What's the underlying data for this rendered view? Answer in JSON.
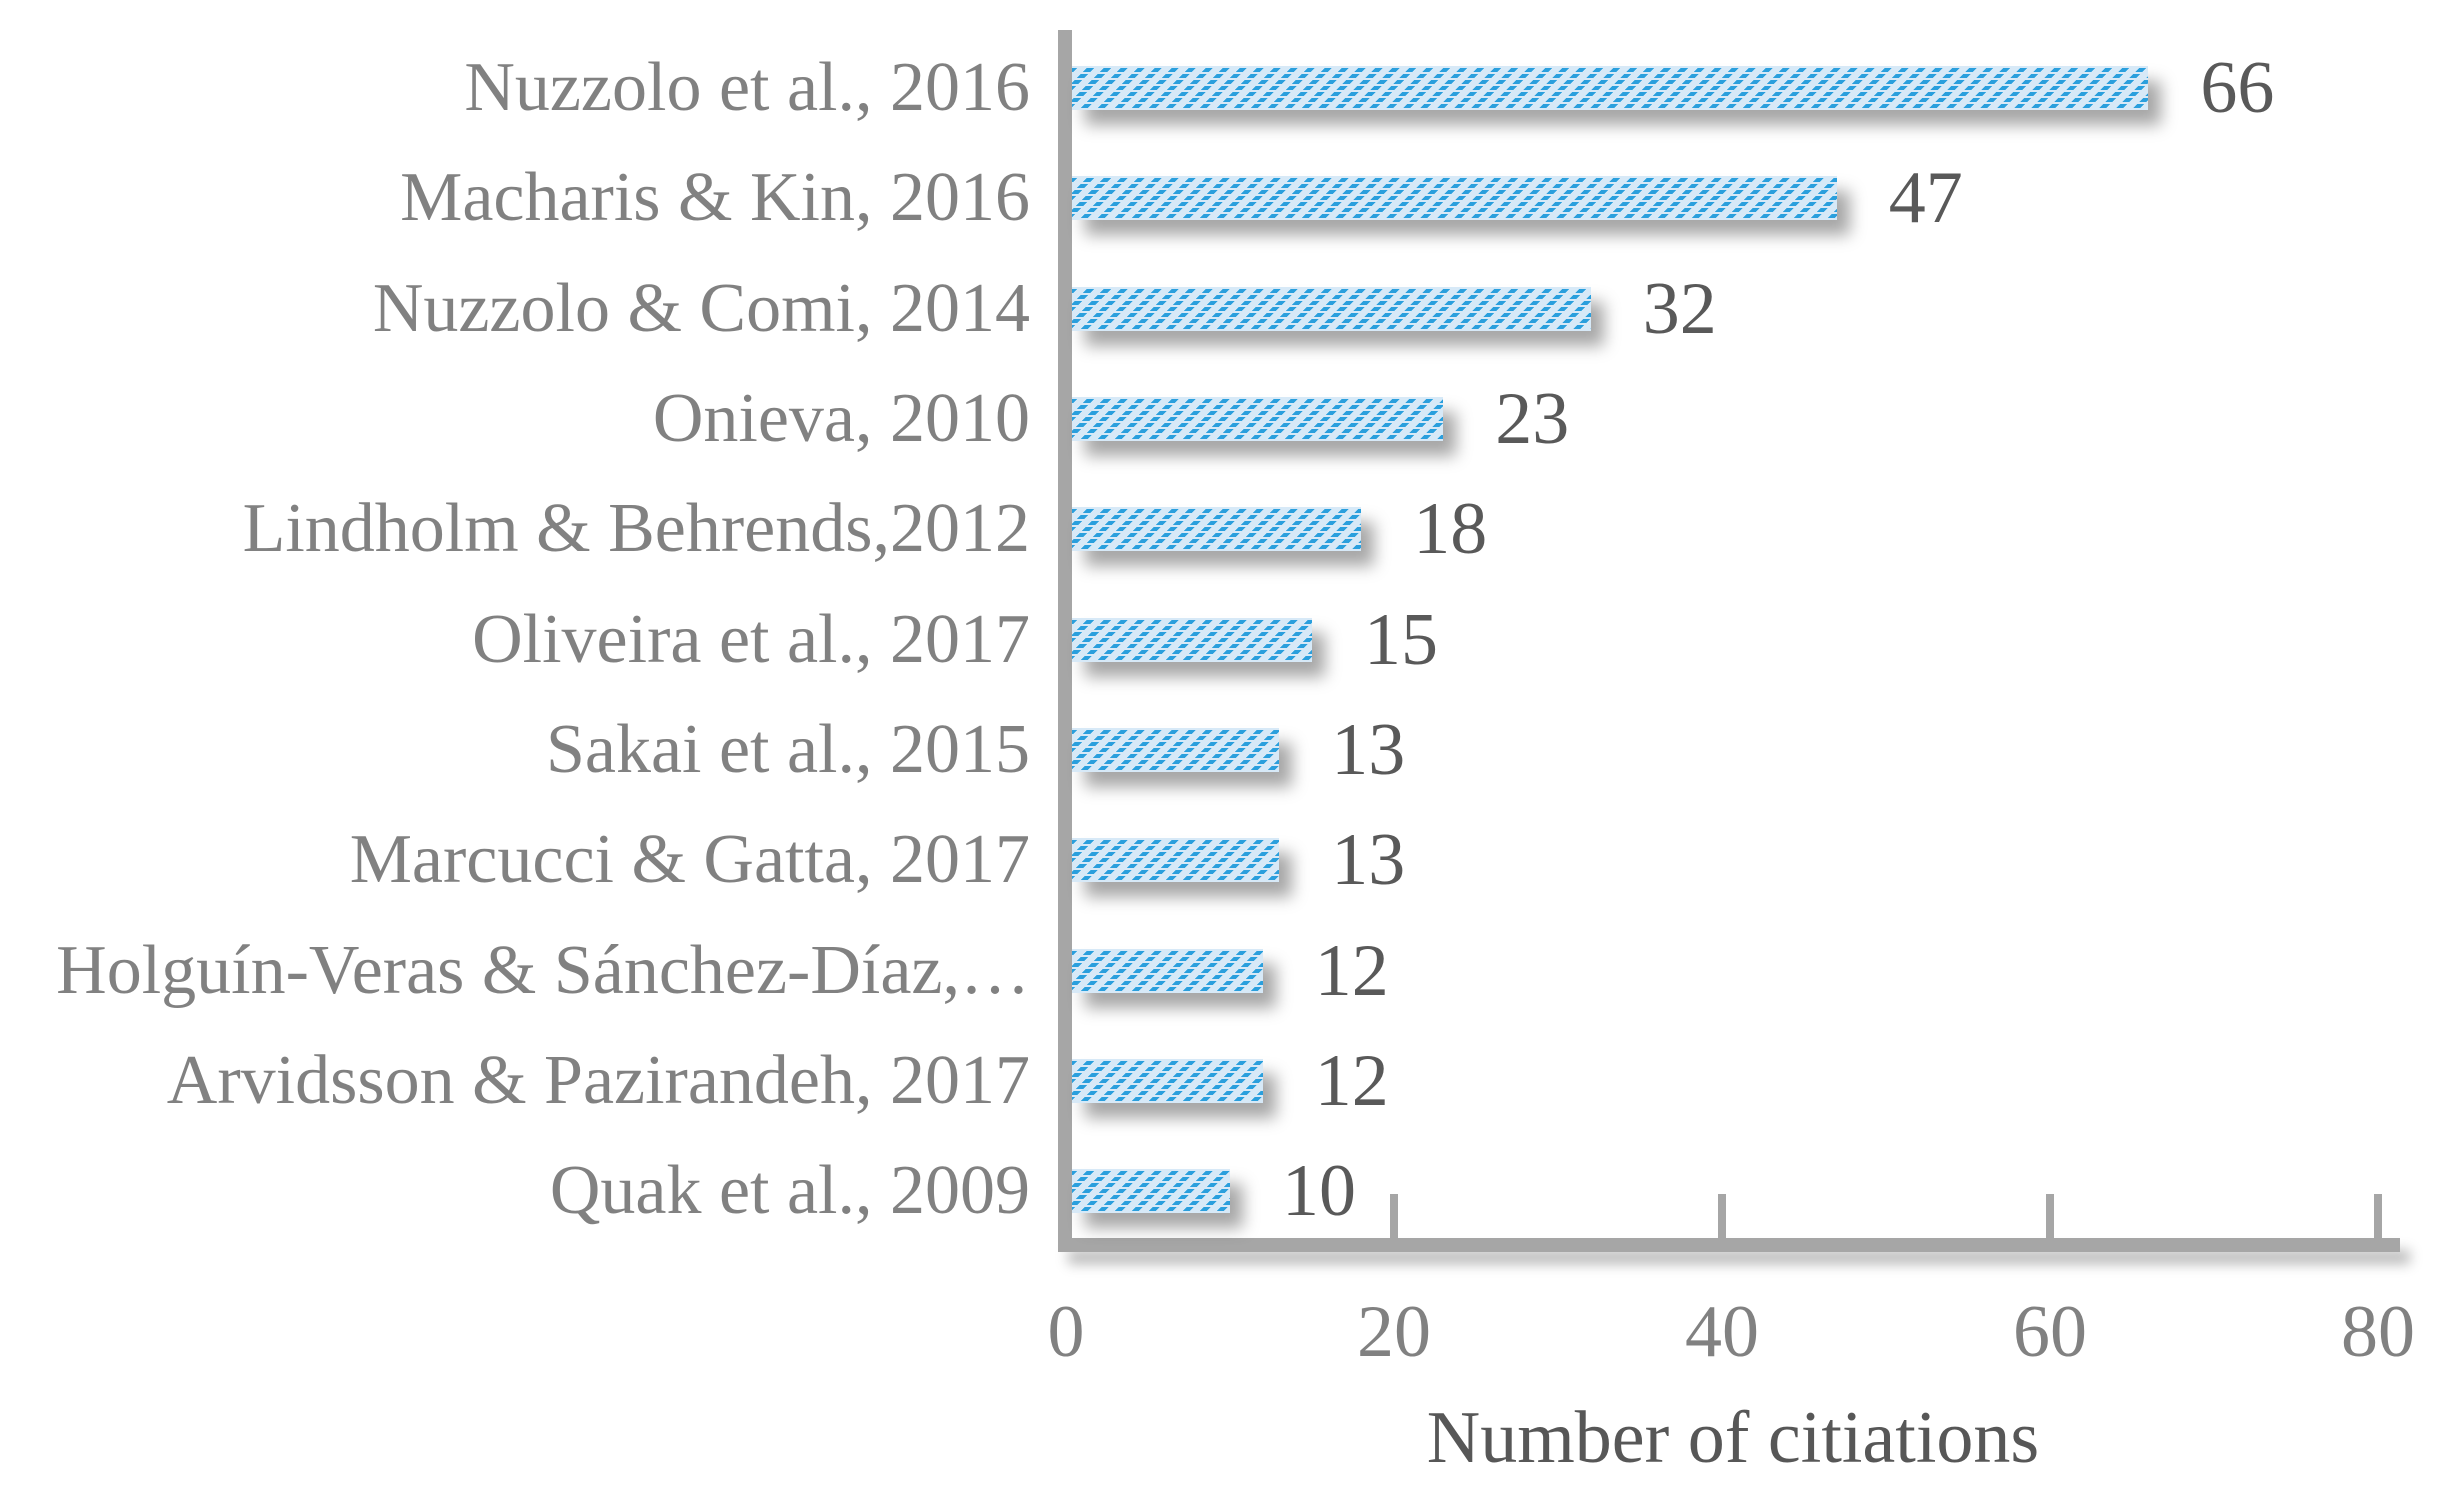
{
  "chart_data": {
    "type": "bar",
    "orientation": "horizontal",
    "title": "",
    "xlabel": "Number of citiations",
    "ylabel": "",
    "categories": [
      "Nuzzolo et al., 2016",
      "Macharis & Kin, 2016",
      "Nuzzolo & Comi, 2014",
      "Onieva, 2010",
      "Lindholm & Behrends,2012",
      "Oliveira et al., 2017",
      "Sakai et al., 2015",
      "Marcucci & Gatta, 2017",
      "Holguín-Veras & Sánchez-Díaz,…",
      "Arvidsson & Pazirandeh, 2017",
      "Quak et al., 2009"
    ],
    "values": [
      66,
      47,
      32,
      23,
      18,
      15,
      13,
      13,
      12,
      12,
      10
    ],
    "x_ticks": [
      0,
      20,
      40,
      60,
      80
    ],
    "xlim": [
      0,
      80
    ],
    "grid": "off",
    "legend": "none",
    "bar_style": "dashed-diagonal-hatch",
    "colors": {
      "bar_fill": "#d7e9f7",
      "bar_hatch": "#2a9fdd",
      "axis_line": "#a6a6a6",
      "category_label": "#818181",
      "tick_label": "#818181",
      "value_label": "#595959",
      "axis_title": "#575757",
      "background": "#ffffff"
    }
  }
}
